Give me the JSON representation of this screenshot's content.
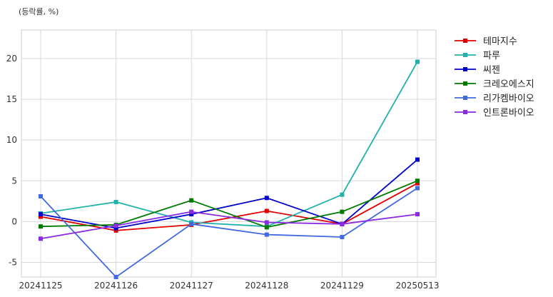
{
  "chart_data": {
    "type": "line",
    "unit_label": "(등락률, %)",
    "categories": [
      "20241125",
      "20241126",
      "20241127",
      "20241128",
      "20241129",
      "20250513"
    ],
    "ylim": [
      -6.8,
      23.5
    ],
    "yticks": [
      -5,
      0,
      5,
      10,
      15,
      20
    ],
    "grid": true,
    "legend_position": "right",
    "series": [
      {
        "name": "테마지수",
        "color": "#e00000",
        "values": [
          0.6,
          -1.1,
          -0.4,
          1.3,
          -0.3,
          4.7
        ]
      },
      {
        "name": "파루",
        "color": "#20b2aa",
        "values": [
          1.0,
          2.4,
          -0.1,
          -0.6,
          3.3,
          19.6
        ]
      },
      {
        "name": "씨젠",
        "color": "#0000cc",
        "values": [
          0.9,
          -0.8,
          0.9,
          2.9,
          -0.3,
          7.6
        ]
      },
      {
        "name": "크레오에스지",
        "color": "#007a00",
        "values": [
          -0.6,
          -0.4,
          2.6,
          -0.7,
          1.2,
          5.0
        ]
      },
      {
        "name": "리가켐바이오",
        "color": "#4169e1",
        "values": [
          3.1,
          -6.8,
          -0.3,
          -1.6,
          -1.9,
          4.1
        ]
      },
      {
        "name": "인트론바이오",
        "color": "#8a2be2",
        "values": [
          -2.1,
          -0.5,
          1.2,
          -0.1,
          -0.3,
          0.9
        ]
      }
    ]
  }
}
